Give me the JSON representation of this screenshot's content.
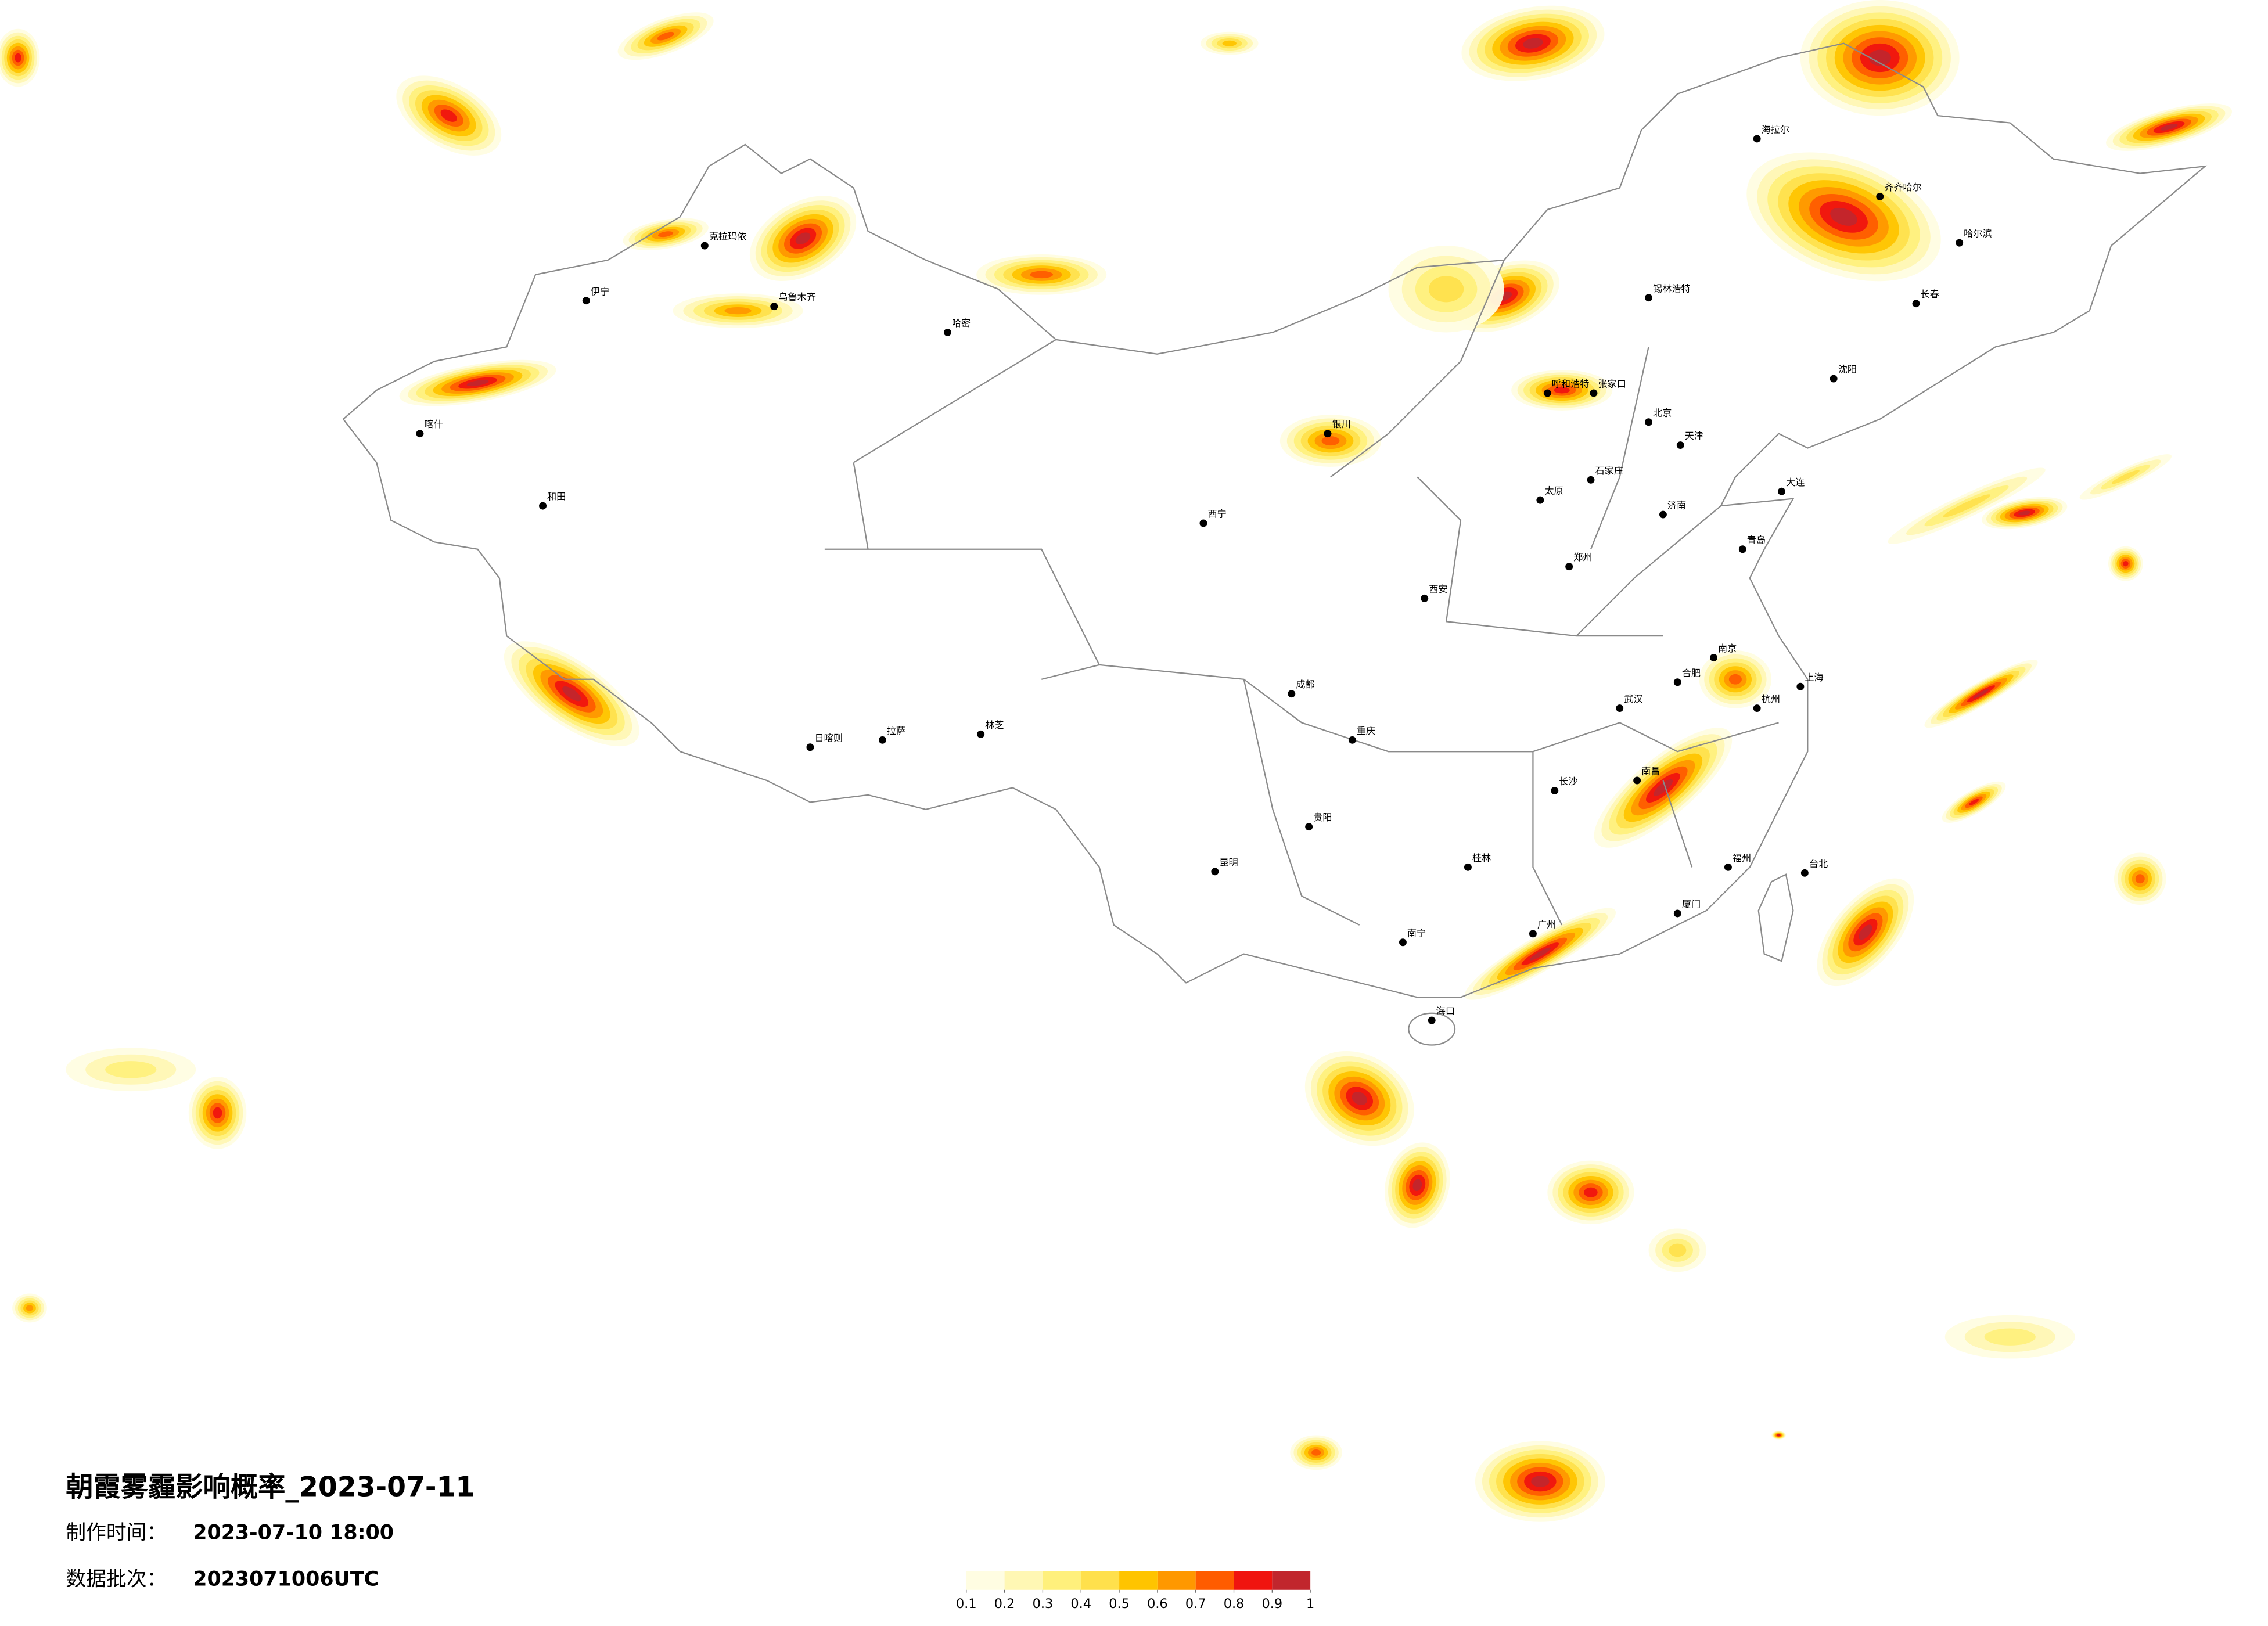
{
  "title": "朝霞雾霾影响概率_2023-07-11",
  "made_time": {
    "label": "制作时间：",
    "value": "2023-07-10 18:00"
  },
  "batch": {
    "label": "数据批次：",
    "value": "2023071006UTC"
  },
  "legend": {
    "colors": [
      "#fffde2",
      "#fff7b4",
      "#fff07c",
      "#ffe04c",
      "#ffc400",
      "#ff9800",
      "#ff5c00",
      "#f0140f",
      "#c1262d"
    ],
    "ticks": [
      0.1,
      0.2,
      0.3,
      0.4,
      0.5,
      0.6,
      0.7,
      0.8,
      0.9,
      1
    ]
  },
  "cities": [
    "哈尔滨",
    "长春",
    "沈阳",
    "北京",
    "天津",
    "石家庄",
    "太原",
    "呼和浩特",
    "济南",
    "郑州",
    "西安",
    "西宁",
    "银川",
    "乌鲁木齐",
    "拉萨",
    "成都",
    "重庆",
    "贵阳",
    "昆明",
    "南宁",
    "广州",
    "长沙",
    "武汉",
    "南昌",
    "福州",
    "杭州",
    "上海",
    "南京",
    "合肥",
    "海口",
    "台北",
    "齐齐哈尔",
    "海拉尔",
    "喀什",
    "和田",
    "伊宁",
    "克拉玛依",
    "哈密",
    "日喀则",
    "林芝",
    "锡林浩特",
    "张家口",
    "大连",
    "青岛",
    "厦门",
    "桂林"
  ]
}
